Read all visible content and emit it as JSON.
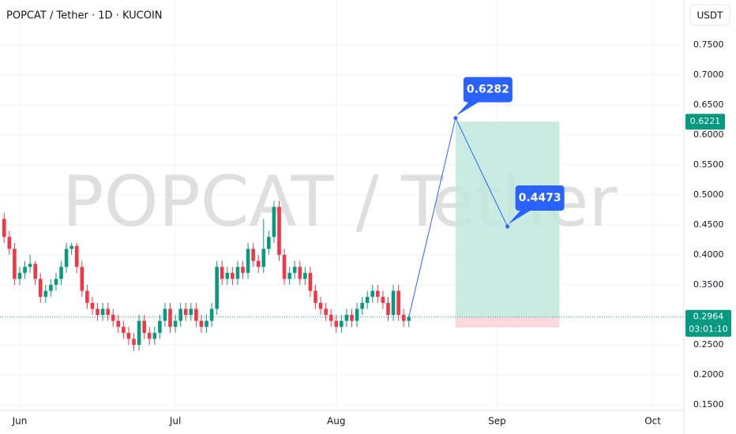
{
  "chart_data": {
    "type": "candlestick",
    "title": "POPCAT / Tether · 1D · KUCOIN",
    "watermark": "POPCAT / Tether",
    "currency": "USDT",
    "up_color": "#089981",
    "down_color": "#f23645",
    "x": [
      -3,
      -2,
      -1,
      0,
      1,
      2,
      3,
      4,
      5,
      6,
      7,
      8,
      9,
      10,
      11,
      12,
      13,
      14,
      15,
      16,
      17,
      18,
      19,
      20,
      21,
      22,
      23,
      24,
      25,
      26,
      27,
      28,
      29,
      30,
      31,
      32,
      33,
      34,
      35,
      36,
      37,
      38,
      39,
      40,
      41,
      42,
      43,
      44,
      45,
      46,
      47,
      48,
      49,
      50,
      51,
      52,
      53,
      54,
      55,
      56,
      57,
      58,
      59,
      60,
      61,
      62,
      63,
      64,
      65,
      66,
      67,
      68,
      69,
      70,
      71,
      72,
      73,
      74,
      75
    ],
    "open": [
      0.46,
      0.43,
      0.41,
      0.36,
      0.37,
      0.38,
      0.385,
      0.36,
      0.33,
      0.34,
      0.35,
      0.36,
      0.38,
      0.41,
      0.415,
      0.38,
      0.34,
      0.32,
      0.31,
      0.3,
      0.31,
      0.3,
      0.29,
      0.28,
      0.27,
      0.26,
      0.25,
      0.29,
      0.27,
      0.26,
      0.27,
      0.29,
      0.31,
      0.28,
      0.29,
      0.31,
      0.3,
      0.31,
      0.29,
      0.28,
      0.29,
      0.31,
      0.38,
      0.36,
      0.37,
      0.36,
      0.38,
      0.37,
      0.41,
      0.39,
      0.38,
      0.41,
      0.43,
      0.48,
      0.4,
      0.36,
      0.37,
      0.38,
      0.36,
      0.37,
      0.34,
      0.32,
      0.31,
      0.3,
      0.29,
      0.28,
      0.29,
      0.3,
      0.29,
      0.31,
      0.32,
      0.33,
      0.34,
      0.33,
      0.32,
      0.3,
      0.34,
      0.3,
      0.29
    ],
    "high": [
      0.47,
      0.44,
      0.42,
      0.38,
      0.39,
      0.4,
      0.39,
      0.37,
      0.35,
      0.36,
      0.37,
      0.39,
      0.42,
      0.42,
      0.42,
      0.39,
      0.35,
      0.33,
      0.32,
      0.32,
      0.32,
      0.31,
      0.3,
      0.29,
      0.28,
      0.27,
      0.3,
      0.3,
      0.28,
      0.28,
      0.3,
      0.32,
      0.32,
      0.3,
      0.32,
      0.32,
      0.32,
      0.32,
      0.3,
      0.3,
      0.32,
      0.39,
      0.39,
      0.38,
      0.38,
      0.39,
      0.39,
      0.42,
      0.42,
      0.4,
      0.46,
      0.44,
      0.49,
      0.49,
      0.41,
      0.38,
      0.39,
      0.39,
      0.38,
      0.38,
      0.35,
      0.33,
      0.32,
      0.31,
      0.3,
      0.3,
      0.31,
      0.31,
      0.32,
      0.33,
      0.34,
      0.35,
      0.35,
      0.34,
      0.33,
      0.35,
      0.35,
      0.31,
      0.3
    ],
    "low": [
      0.42,
      0.4,
      0.35,
      0.35,
      0.36,
      0.37,
      0.35,
      0.32,
      0.32,
      0.33,
      0.34,
      0.35,
      0.37,
      0.4,
      0.37,
      0.33,
      0.31,
      0.3,
      0.29,
      0.29,
      0.29,
      0.28,
      0.27,
      0.26,
      0.25,
      0.24,
      0.24,
      0.26,
      0.25,
      0.25,
      0.26,
      0.28,
      0.27,
      0.27,
      0.28,
      0.29,
      0.29,
      0.28,
      0.27,
      0.27,
      0.28,
      0.3,
      0.35,
      0.35,
      0.35,
      0.35,
      0.36,
      0.36,
      0.38,
      0.37,
      0.37,
      0.4,
      0.42,
      0.39,
      0.35,
      0.35,
      0.36,
      0.35,
      0.35,
      0.33,
      0.31,
      0.3,
      0.29,
      0.28,
      0.27,
      0.27,
      0.28,
      0.28,
      0.28,
      0.3,
      0.31,
      0.32,
      0.32,
      0.31,
      0.29,
      0.29,
      0.29,
      0.28,
      0.28
    ],
    "close": [
      0.43,
      0.41,
      0.36,
      0.37,
      0.38,
      0.385,
      0.36,
      0.33,
      0.34,
      0.35,
      0.36,
      0.38,
      0.41,
      0.415,
      0.38,
      0.34,
      0.32,
      0.31,
      0.3,
      0.31,
      0.3,
      0.29,
      0.28,
      0.27,
      0.26,
      0.25,
      0.29,
      0.27,
      0.26,
      0.27,
      0.29,
      0.31,
      0.28,
      0.29,
      0.31,
      0.3,
      0.31,
      0.29,
      0.28,
      0.29,
      0.31,
      0.38,
      0.36,
      0.37,
      0.36,
      0.38,
      0.37,
      0.41,
      0.39,
      0.38,
      0.41,
      0.43,
      0.48,
      0.4,
      0.36,
      0.37,
      0.38,
      0.36,
      0.37,
      0.34,
      0.32,
      0.31,
      0.3,
      0.29,
      0.28,
      0.29,
      0.3,
      0.29,
      0.31,
      0.32,
      0.33,
      0.34,
      0.33,
      0.32,
      0.3,
      0.34,
      0.3,
      0.29,
      0.2964
    ],
    "xlim": [
      -3.8,
      128
    ],
    "xticks": [
      {
        "value": 0,
        "label": "Jun"
      },
      {
        "value": 30,
        "label": "Jul"
      },
      {
        "value": 61,
        "label": "Aug"
      },
      {
        "value": 92,
        "label": "Sep"
      },
      {
        "value": 122,
        "label": "Oct"
      }
    ],
    "ylim": [
      0.1408,
      0.825
    ],
    "yticks": [
      {
        "value": 0.15,
        "label": "0.1500"
      },
      {
        "value": 0.2,
        "label": "0.2000"
      },
      {
        "value": 0.25,
        "label": "0.2500"
      },
      {
        "value": 0.3,
        "label": "0.3000"
      },
      {
        "value": 0.35,
        "label": "0.3500"
      },
      {
        "value": 0.4,
        "label": "0.4000"
      },
      {
        "value": 0.45,
        "label": "0.4500"
      },
      {
        "value": 0.5,
        "label": "0.5000"
      },
      {
        "value": 0.55,
        "label": "0.5500"
      },
      {
        "value": 0.6,
        "label": "0.6000"
      },
      {
        "value": 0.65,
        "label": "0.6500"
      },
      {
        "value": 0.7,
        "label": "0.7000"
      },
      {
        "value": 0.75,
        "label": "0.7500"
      }
    ],
    "last_price": 0.2964,
    "countdown": "03:01:10",
    "position": {
      "start": 84,
      "end": 104,
      "entry": 0.2964,
      "target": 0.6221,
      "stop": 0.279,
      "profit_color": "#bfe8dd",
      "loss_color": "#fbd0d6"
    },
    "projection": {
      "color": "#2962ff",
      "x": [
        75,
        84,
        94
      ],
      "y": [
        0.2964,
        0.6282,
        0.4473
      ]
    }
  }
}
